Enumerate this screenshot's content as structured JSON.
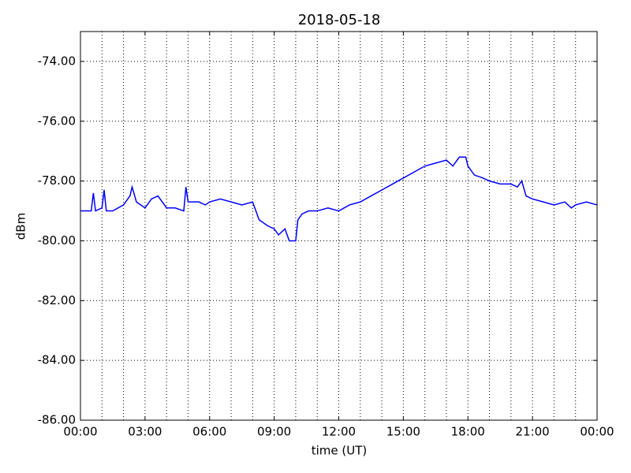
{
  "chart_data": {
    "type": "line",
    "title": "2018-05-18",
    "x_label": "time (UT)",
    "y_label": "dBm",
    "x": [
      0,
      0.5,
      0.6,
      0.7,
      1.0,
      1.1,
      1.2,
      1.5,
      2.0,
      2.3,
      2.4,
      2.6,
      3.0,
      3.3,
      3.6,
      4.0,
      4.4,
      4.8,
      4.9,
      5.0,
      5.5,
      5.8,
      6.0,
      6.5,
      7.0,
      7.5,
      8.0,
      8.3,
      8.7,
      9.0,
      9.2,
      9.5,
      9.7,
      10.0,
      10.1,
      10.3,
      10.6,
      11.0,
      11.5,
      12.0,
      12.5,
      13.0,
      13.5,
      14.0,
      14.5,
      15.0,
      15.5,
      16.0,
      16.5,
      17.0,
      17.3,
      17.6,
      17.9,
      18.0,
      18.3,
      18.7,
      19.0,
      19.5,
      20.0,
      20.3,
      20.5,
      20.7,
      21.0,
      21.5,
      22.0,
      22.5,
      22.8,
      23.0,
      23.5,
      24.0
    ],
    "series": [
      {
        "name": "dBm",
        "color": "#0000ff",
        "values": [
          -79.0,
          -79.0,
          -78.4,
          -79.0,
          -78.9,
          -78.3,
          -79.0,
          -79.0,
          -78.8,
          -78.5,
          -78.2,
          -78.7,
          -78.9,
          -78.6,
          -78.5,
          -78.9,
          -78.9,
          -79.0,
          -78.2,
          -78.7,
          -78.7,
          -78.8,
          -78.7,
          -78.6,
          -78.7,
          -78.8,
          -78.7,
          -79.3,
          -79.5,
          -79.6,
          -79.8,
          -79.6,
          -80.0,
          -80.0,
          -79.3,
          -79.1,
          -79.0,
          -79.0,
          -78.9,
          -79.0,
          -78.8,
          -78.7,
          -78.5,
          -78.3,
          -78.1,
          -77.9,
          -77.7,
          -77.5,
          -77.4,
          -77.3,
          -77.5,
          -77.2,
          -77.2,
          -77.5,
          -77.8,
          -77.9,
          -78.0,
          -78.1,
          -78.1,
          -78.2,
          -78.0,
          -78.5,
          -78.6,
          -78.7,
          -78.8,
          -78.7,
          -78.9,
          -78.8,
          -78.7,
          -78.8
        ]
      }
    ],
    "xlim": [
      0,
      24
    ],
    "xticks": [
      {
        "value": 0,
        "label": "00:00"
      },
      {
        "value": 3,
        "label": "03:00"
      },
      {
        "value": 6,
        "label": "06:00"
      },
      {
        "value": 9,
        "label": "09:00"
      },
      {
        "value": 12,
        "label": "12:00"
      },
      {
        "value": 15,
        "label": "15:00"
      },
      {
        "value": 18,
        "label": "18:00"
      },
      {
        "value": 21,
        "label": "21:00"
      },
      {
        "value": 24,
        "label": "00:00"
      }
    ],
    "x_minor_ticks": [
      1,
      2,
      4,
      5,
      7,
      8,
      10,
      11,
      13,
      14,
      16,
      17,
      19,
      20,
      22,
      23
    ],
    "ylim": [
      -86,
      -73
    ],
    "yticks": [
      {
        "value": -86,
        "label": "-86.00"
      },
      {
        "value": -84,
        "label": "-84.00"
      },
      {
        "value": -82,
        "label": "-82.00"
      },
      {
        "value": -80,
        "label": "-80.00"
      },
      {
        "value": -78,
        "label": "-78.00"
      },
      {
        "value": -76,
        "label": "-76.00"
      },
      {
        "value": -74,
        "label": "-74.00"
      }
    ],
    "grid": true
  }
}
